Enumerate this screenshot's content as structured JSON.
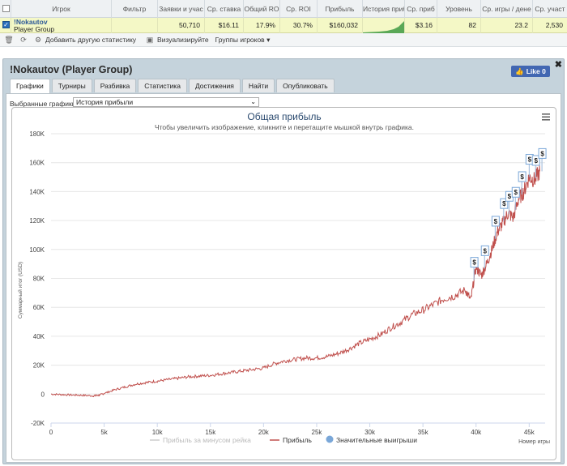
{
  "grid": {
    "headers": [
      "Игрок",
      "Фильтр",
      "Заявки и участия",
      "Ср. ставка",
      "Общий ROI",
      "Ср. ROI",
      "Прибыль",
      "История прибыли",
      "Ср. прибыль",
      "Уровень",
      "Ср. игры / день",
      "Ср. участ"
    ],
    "headers_shown": [
      "Игрок",
      "Фильтр",
      "Заявки и учас",
      "Ср. ставка",
      "Общий RO",
      "Ср. ROI",
      "Прибыль",
      "История приб",
      "Ср. приб",
      "Уровень",
      "Ср. игры / дене",
      "Ср. участ"
    ],
    "row": {
      "player_name": "!Nokautov",
      "player_sub": "Player Group",
      "entries": "50,710",
      "avg_stake": "$16.11",
      "total_roi": "17.9%",
      "avg_roi": "30.7%",
      "profit": "$160,032",
      "avg_profit": "$3.16",
      "level": "82",
      "games_per_day": "23.2",
      "avg_entries": "2,530"
    }
  },
  "toolbar": {
    "add_stat": "Добавить другую статистику",
    "visualize": "Визуализируйте",
    "player_groups": "Группы игроков"
  },
  "panel": {
    "title": "!Nokautov (Player Group)",
    "like": "Like 0",
    "tabs": [
      "Графики",
      "Турниры",
      "Разбивка",
      "Статистика",
      "Достижения",
      "Найти",
      "Опубликовать"
    ],
    "selected_label": "Выбранные графики:",
    "selected_value": "История прибыли"
  },
  "chart_data": {
    "type": "line",
    "title": "Общая прибыль",
    "subtitle": "Чтобы увеличить изображение, кликните и перетащите мышкой внутрь графика.",
    "ylabel": "Суммарный итог (USD)",
    "xlabel": "Номер игры",
    "xlim": [
      0,
      46500
    ],
    "ylim": [
      -20000,
      180000
    ],
    "y_ticks": [
      "-20K",
      "0",
      "20K",
      "40K",
      "60K",
      "80K",
      "100K",
      "120K",
      "140K",
      "160K",
      "180K"
    ],
    "x_ticks": [
      "0",
      "5k",
      "10k",
      "15k",
      "20k",
      "25k",
      "30k",
      "35k",
      "40k",
      "45k"
    ],
    "legend": [
      "Прибыль за минусом рейка",
      "Прибыль",
      "Значительные выигрыши"
    ],
    "series": [
      {
        "name": "Прибыль",
        "color": "#c0504d",
        "x": [
          0,
          1000,
          2000,
          3000,
          4000,
          4500,
          5000,
          6000,
          7000,
          8000,
          9000,
          10000,
          11000,
          12000,
          13000,
          14000,
          15000,
          16000,
          17000,
          18000,
          19000,
          20000,
          21000,
          22000,
          23000,
          24000,
          25000,
          26000,
          27000,
          28000,
          29000,
          30000,
          31000,
          32000,
          33000,
          34000,
          35000,
          36000,
          37000,
          38000,
          39000,
          39500,
          40000,
          40500,
          41000,
          41500,
          42000,
          42500,
          43000,
          43500,
          44000,
          44500,
          45000,
          45500,
          46000
        ],
        "y": [
          0,
          -300,
          -600,
          -800,
          -1200,
          -800,
          500,
          3000,
          5000,
          7000,
          8000,
          9000,
          10000,
          11000,
          12000,
          12500,
          13000,
          14000,
          15000,
          16000,
          17000,
          18000,
          21000,
          23000,
          24000,
          25000,
          25000,
          26000,
          28000,
          31000,
          35000,
          38000,
          41000,
          46000,
          50000,
          55000,
          58000,
          62000,
          66000,
          68000,
          72000,
          65000,
          88000,
          82000,
          90000,
          100000,
          112000,
          118000,
          125000,
          122000,
          135000,
          140000,
          150000,
          148000,
          154000
        ]
      }
    ],
    "big_wins_x": [
      39800,
      40800,
      41800,
      42600,
      43100,
      43700,
      44300,
      45000,
      45600,
      46200
    ],
    "big_wins_label": "$"
  }
}
